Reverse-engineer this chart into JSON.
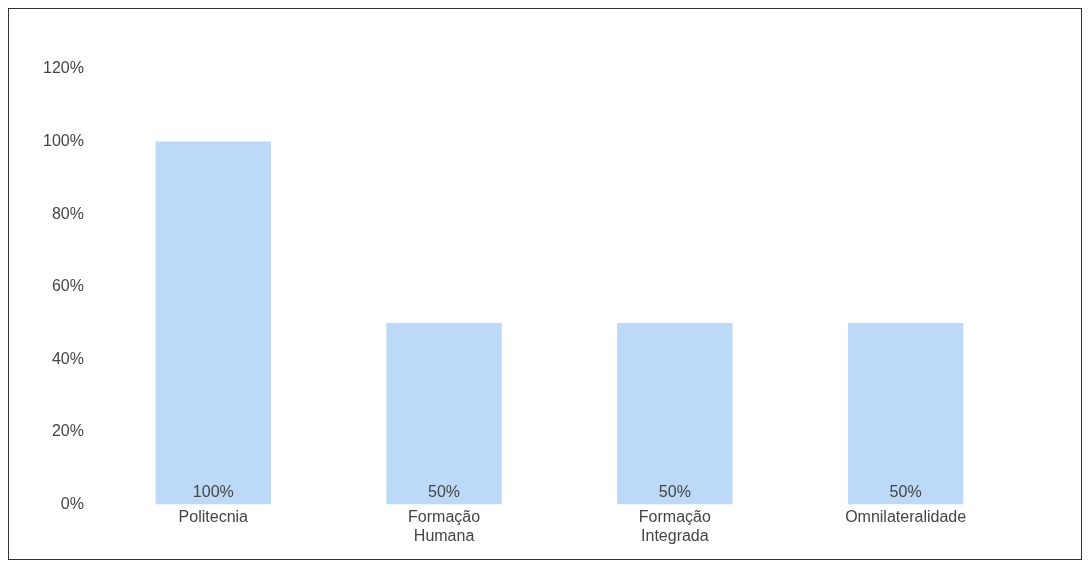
{
  "chart_data": {
    "type": "bar",
    "categories": [
      "Politecnia",
      "Formação Humana",
      "Formação Integrada",
      "Omnilateralidade"
    ],
    "values": [
      100,
      50,
      50,
      50
    ],
    "color": "#bcdaf7",
    "value_labels": [
      "100%",
      "50%",
      "50%",
      "50%"
    ],
    "ylim": [
      0,
      120
    ],
    "yticks": [
      {
        "value": 0,
        "label": "0%"
      },
      {
        "value": 20,
        "label": "20%"
      },
      {
        "value": 40,
        "label": "40%"
      },
      {
        "value": 60,
        "label": "60%"
      },
      {
        "value": 80,
        "label": "80%"
      },
      {
        "value": 100,
        "label": "100%"
      },
      {
        "value": 120,
        "label": "120%"
      }
    ],
    "grid": false,
    "legend": false
  }
}
